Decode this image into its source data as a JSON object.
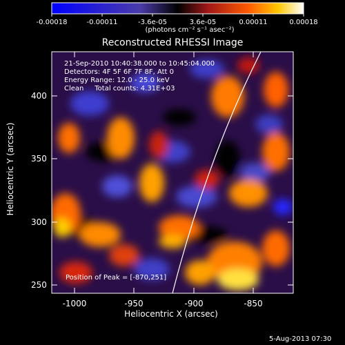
{
  "colorbar": {
    "tick_labels": [
      "-0.00018",
      "-0.00011",
      "-3.6e-05",
      "3.6e-05",
      "0.00011",
      "0.00018"
    ],
    "unit_label": "(photons cm⁻² s⁻¹ asec⁻²)"
  },
  "title": "Reconstructed RHESSI Image",
  "info": {
    "time": "21-Sep-2010 10:40:38.000 to 10:45:04.000",
    "detectors": "Detectors: 4F 5F 6F 7F 8F, Att 0",
    "energy": "Energy Range: 12.0 - 25.0 keV",
    "clean": "Clean     Total counts: 4.31E+03"
  },
  "peak": "Position of Peak = [-870,251]",
  "x_axis": {
    "label": "Heliocentric X (arcsec)",
    "ticks": [
      "-1000",
      "-950",
      "-900",
      "-850"
    ]
  },
  "y_axis": {
    "label": "Heliocentric Y (arcsec)",
    "ticks": [
      "400",
      "350",
      "300",
      "250"
    ]
  },
  "footer": "5-Aug-2013 07:30",
  "colors": {
    "background": "#000000",
    "limb": "#ffffff"
  }
}
